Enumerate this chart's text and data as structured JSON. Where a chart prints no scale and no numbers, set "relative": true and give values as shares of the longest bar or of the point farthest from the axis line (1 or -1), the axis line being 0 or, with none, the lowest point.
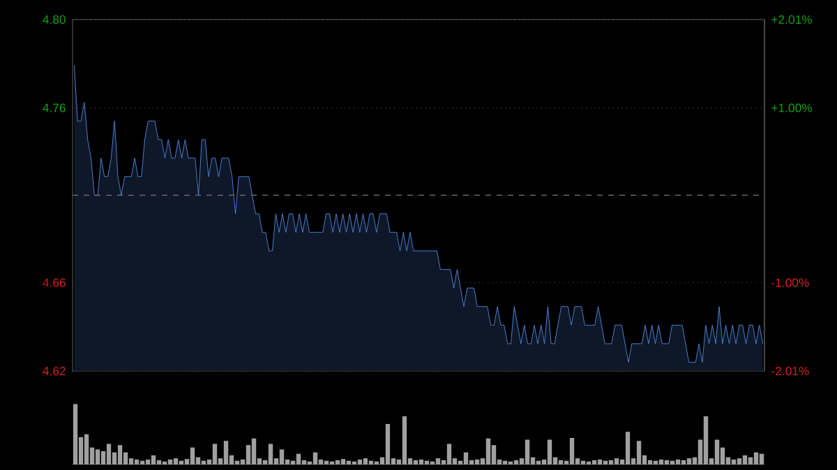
{
  "chart_data": [
    {
      "type": "area",
      "color": "#4f86e0",
      "categories": [
        null,
        null,
        null,
        null,
        null,
        null,
        null,
        null,
        null,
        null,
        null,
        null,
        null,
        null,
        null,
        null,
        null,
        null,
        null,
        null,
        null,
        null,
        null,
        null,
        null,
        null,
        null,
        null,
        null,
        null,
        null,
        null,
        null,
        null,
        null,
        null,
        null,
        null,
        null,
        null,
        null,
        null,
        null,
        null,
        null,
        null,
        null,
        null,
        null,
        null,
        null,
        null,
        null,
        null,
        null,
        null,
        null,
        null,
        null,
        null,
        null,
        null,
        null,
        null,
        null,
        null,
        null,
        null,
        null,
        null,
        null,
        null,
        null,
        null,
        null,
        null,
        null,
        null,
        null,
        null,
        null,
        null,
        null,
        null,
        null,
        null,
        null,
        null,
        null,
        null,
        null,
        null,
        null,
        null,
        null,
        null,
        null,
        null,
        null,
        null,
        null,
        null,
        null,
        null,
        null,
        null,
        null,
        null,
        null,
        null,
        null,
        null,
        null,
        null,
        null,
        null,
        null,
        null,
        null,
        null,
        null,
        null,
        null,
        null,
        null,
        null,
        null,
        null,
        null,
        null,
        null,
        null,
        null,
        null,
        null,
        null,
        null,
        null,
        null,
        null,
        null,
        null,
        null,
        null,
        null,
        null,
        null,
        null,
        null,
        null,
        null,
        null,
        null,
        null,
        null,
        null,
        null,
        null,
        null,
        null,
        null,
        null,
        null,
        null,
        null,
        null,
        null,
        null,
        null,
        null,
        null,
        null,
        null,
        null,
        null,
        null,
        null,
        null,
        null,
        null,
        null,
        null,
        null,
        null,
        null,
        null,
        null,
        null,
        null,
        null,
        null,
        null,
        null,
        null,
        null,
        null,
        null,
        null,
        null,
        null,
        null,
        null,
        null,
        null,
        null,
        null
      ],
      "values": [
        4.78,
        4.75,
        4.75,
        4.76,
        4.74,
        4.73,
        4.71,
        4.71,
        4.73,
        4.72,
        4.72,
        4.73,
        4.75,
        4.72,
        4.71,
        4.72,
        4.72,
        4.72,
        4.73,
        4.72,
        4.72,
        4.74,
        4.75,
        4.75,
        4.75,
        4.74,
        4.74,
        4.73,
        4.74,
        4.73,
        4.73,
        4.74,
        4.73,
        4.74,
        4.73,
        4.73,
        4.73,
        4.71,
        4.74,
        4.74,
        4.72,
        4.73,
        4.73,
        4.72,
        4.73,
        4.73,
        4.73,
        4.72,
        4.7,
        4.72,
        4.72,
        4.72,
        4.72,
        4.71,
        4.7,
        4.7,
        4.69,
        4.69,
        4.68,
        4.68,
        4.7,
        4.69,
        4.7,
        4.69,
        4.7,
        4.7,
        4.69,
        4.7,
        4.69,
        4.7,
        4.69,
        4.69,
        4.69,
        4.69,
        4.69,
        4.7,
        4.7,
        4.69,
        4.7,
        4.69,
        4.7,
        4.69,
        4.7,
        4.69,
        4.7,
        4.69,
        4.7,
        4.69,
        4.7,
        4.7,
        4.69,
        4.7,
        4.7,
        4.7,
        4.69,
        4.69,
        4.69,
        4.68,
        4.69,
        4.68,
        4.69,
        4.68,
        4.68,
        4.68,
        4.68,
        4.68,
        4.68,
        4.68,
        4.68,
        4.67,
        4.67,
        4.67,
        4.67,
        4.66,
        4.67,
        4.66,
        4.65,
        4.66,
        4.66,
        4.66,
        4.65,
        4.65,
        4.65,
        4.65,
        4.64,
        4.64,
        4.65,
        4.64,
        4.64,
        4.63,
        4.63,
        4.65,
        4.64,
        4.63,
        4.64,
        4.63,
        4.63,
        4.64,
        4.63,
        4.64,
        4.63,
        4.65,
        4.63,
        4.63,
        4.64,
        4.65,
        4.65,
        4.65,
        4.64,
        4.65,
        4.65,
        4.65,
        4.64,
        4.64,
        4.64,
        4.64,
        4.65,
        4.64,
        4.63,
        4.63,
        4.63,
        4.64,
        4.64,
        4.64,
        4.63,
        4.62,
        4.63,
        4.63,
        4.63,
        4.63,
        4.64,
        4.63,
        4.64,
        4.63,
        4.64,
        4.63,
        4.63,
        4.63,
        4.64,
        4.64,
        4.64,
        4.64,
        4.63,
        4.62,
        4.62,
        4.62,
        4.63,
        4.62,
        4.64,
        4.63,
        4.64,
        4.63,
        4.65,
        4.63,
        4.64,
        4.63,
        4.64,
        4.63,
        4.64,
        4.64,
        4.63,
        4.64,
        4.64,
        4.63,
        4.64,
        4.63
      ],
      "ylim": [
        4.6153,
        4.8047
      ],
      "yticks": [
        {
          "value": 4.8047,
          "label": "4.80"
        },
        {
          "value": 4.7571,
          "label": "4.76"
        },
        {
          "value": 4.6629,
          "label": "4.66"
        },
        {
          "value": 4.6153,
          "label": "4.62"
        }
      ],
      "y2lim": [
        -2.01,
        2.01
      ],
      "y2ticks": [
        {
          "value": 2.01,
          "label": "+2.01%"
        },
        {
          "value": 1.0,
          "label": "+1.00%"
        },
        {
          "value": -1.0,
          "label": "-1.00%"
        },
        {
          "value": -2.01,
          "label": "-2.01%"
        }
      ],
      "ref_lines": [
        {
          "axis": "y",
          "value": 4.71,
          "line_style": "dashed"
        }
      ],
      "grid": "y"
    },
    {
      "type": "bar",
      "relative": true,
      "color": "#a0a0a0",
      "categories": [
        null,
        null,
        null,
        null,
        null,
        null,
        null,
        null,
        null,
        null,
        null,
        null,
        null,
        null,
        null,
        null,
        null,
        null,
        null,
        null,
        null,
        null,
        null,
        null,
        null,
        null,
        null,
        null,
        null,
        null,
        null,
        null,
        null,
        null,
        null,
        null,
        null,
        null,
        null,
        null,
        null,
        null,
        null,
        null,
        null,
        null,
        null,
        null,
        null,
        null,
        null,
        null,
        null,
        null,
        null,
        null,
        null,
        null,
        null,
        null,
        null,
        null,
        null,
        null,
        null,
        null,
        null,
        null,
        null,
        null,
        null,
        null,
        null,
        null,
        null,
        null,
        null,
        null,
        null,
        null,
        null,
        null,
        null,
        null,
        null,
        null,
        null,
        null,
        null,
        null,
        null,
        null,
        null,
        null,
        null,
        null,
        null,
        null,
        null,
        null,
        null,
        null,
        null,
        null,
        null,
        null,
        null,
        null,
        null,
        null,
        null,
        null,
        null,
        null,
        null,
        null,
        null,
        null,
        null,
        null,
        null,
        null,
        null,
        null
      ],
      "values": [
        1.0,
        0.45,
        0.5,
        0.28,
        0.25,
        0.22,
        0.34,
        0.2,
        0.32,
        0.2,
        0.1,
        0.08,
        0.06,
        0.08,
        0.15,
        0.07,
        0.05,
        0.08,
        0.1,
        0.06,
        0.09,
        0.28,
        0.12,
        0.06,
        0.08,
        0.34,
        0.1,
        0.39,
        0.15,
        0.06,
        0.08,
        0.32,
        0.43,
        0.1,
        0.07,
        0.34,
        0.1,
        0.25,
        0.08,
        0.06,
        0.18,
        0.07,
        0.05,
        0.2,
        0.08,
        0.06,
        0.05,
        0.07,
        0.09,
        0.06,
        0.05,
        0.08,
        0.1,
        0.06,
        0.05,
        0.12,
        0.67,
        0.1,
        0.08,
        0.8,
        0.1,
        0.07,
        0.08,
        0.06,
        0.05,
        0.1,
        0.07,
        0.34,
        0.1,
        0.06,
        0.2,
        0.07,
        0.08,
        0.1,
        0.43,
        0.32,
        0.08,
        0.06,
        0.05,
        0.07,
        0.1,
        0.41,
        0.12,
        0.06,
        0.08,
        0.41,
        0.12,
        0.07,
        0.06,
        0.44,
        0.1,
        0.06,
        0.05,
        0.07,
        0.08,
        0.06,
        0.07,
        0.1,
        0.08,
        0.54,
        0.1,
        0.39,
        0.15,
        0.07,
        0.06,
        0.08,
        0.07,
        0.06,
        0.08,
        0.07,
        0.1,
        0.12,
        0.41,
        0.8,
        0.1,
        0.41,
        0.28,
        0.12,
        0.08,
        0.1,
        0.15,
        0.12,
        0.2,
        0.18
      ]
    }
  ]
}
